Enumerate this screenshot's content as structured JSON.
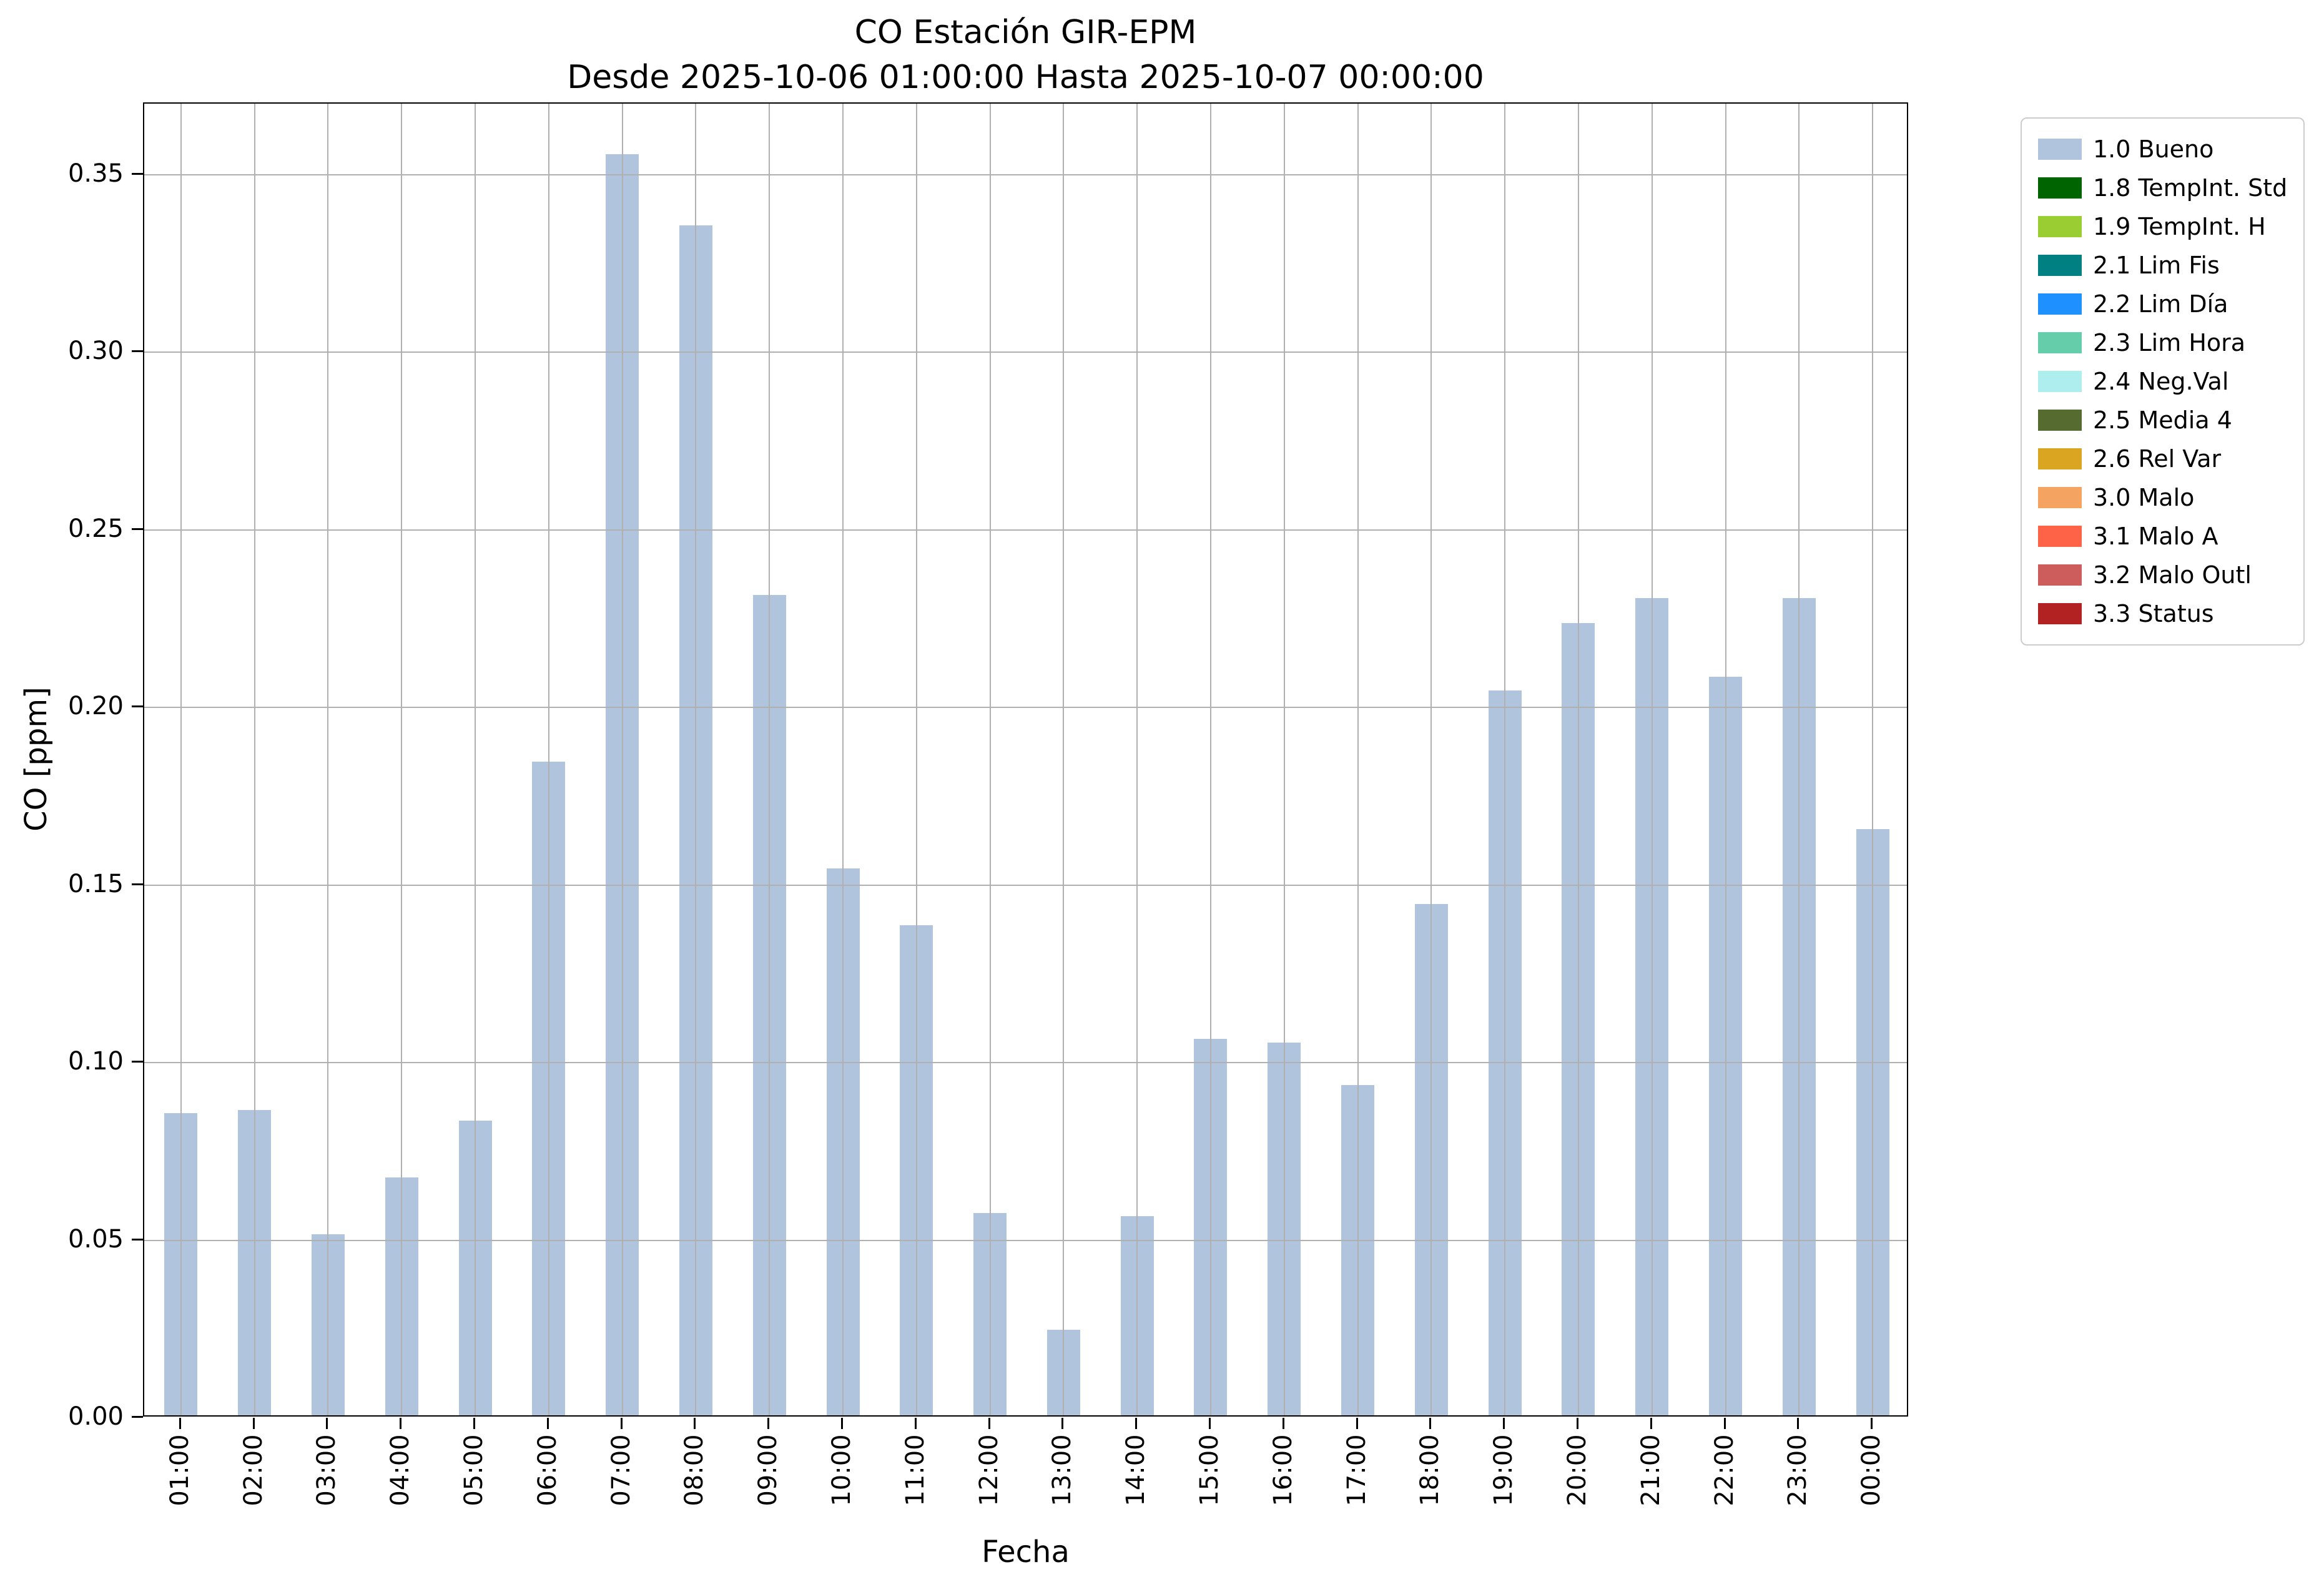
{
  "chart_data": {
    "type": "bar",
    "title": "CO Estación GIR-EPM",
    "subtitle": "Desde 2025-10-06 01:00:00 Hasta 2025-10-07 00:00:00",
    "xlabel": "Fecha",
    "ylabel": "CO [ppm]",
    "ylim": [
      0,
      0.37
    ],
    "yticks": [
      0,
      0.05,
      0.1,
      0.15,
      0.2,
      0.25,
      0.3,
      0.35
    ],
    "grid": true,
    "legend_position": "outside-upper-right",
    "bar_color": "#b0c4de",
    "series_name": "1.0 Bueno",
    "categories": [
      "01:00",
      "02:00",
      "03:00",
      "04:00",
      "05:00",
      "06:00",
      "07:00",
      "08:00",
      "09:00",
      "10:00",
      "11:00",
      "12:00",
      "13:00",
      "14:00",
      "15:00",
      "16:00",
      "17:00",
      "18:00",
      "19:00",
      "20:00",
      "21:00",
      "22:00",
      "23:00",
      "00:00"
    ],
    "values": [
      0.085,
      0.086,
      0.051,
      0.067,
      0.083,
      0.184,
      0.355,
      0.335,
      0.231,
      0.154,
      0.138,
      0.057,
      0.024,
      0.056,
      0.106,
      0.105,
      0.093,
      0.144,
      0.204,
      0.223,
      0.23,
      0.208,
      0.23,
      0.165
    ],
    "legend": [
      {
        "label": "1.0 Bueno",
        "color": "#b0c4de"
      },
      {
        "label": "1.8 TempInt. Std",
        "color": "#006400"
      },
      {
        "label": "1.9 TempInt. H",
        "color": "#9acd32"
      },
      {
        "label": "2.1 Lim Fis",
        "color": "#008080"
      },
      {
        "label": "2.2 Lim Día",
        "color": "#1e90ff"
      },
      {
        "label": "2.3 Lim Hora",
        "color": "#66cdaa"
      },
      {
        "label": "2.4 Neg.Val",
        "color": "#afeeee"
      },
      {
        "label": "2.5 Media 4",
        "color": "#556b2f"
      },
      {
        "label": "2.6 Rel Var",
        "color": "#daa520"
      },
      {
        "label": "3.0 Malo",
        "color": "#f4a460"
      },
      {
        "label": "3.1 Malo A",
        "color": "#ff6347"
      },
      {
        "label": "3.2 Malo Outl",
        "color": "#cd5c5c"
      },
      {
        "label": "3.3 Status",
        "color": "#b22222"
      }
    ]
  }
}
